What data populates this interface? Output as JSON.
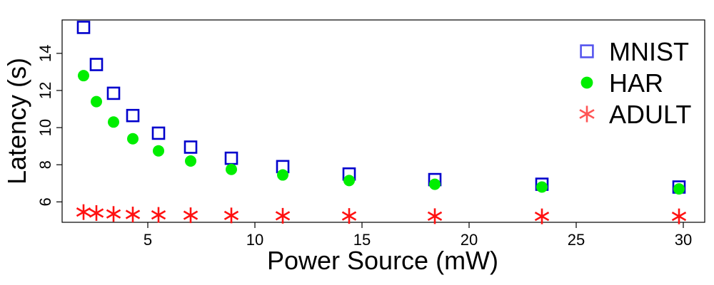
{
  "chart_data": {
    "type": "scatter",
    "title": "",
    "xlabel": "Power Source (mW)",
    "ylabel": "Latency (s)",
    "xlim": [
      1.0,
      31.0
    ],
    "ylim": [
      4.9,
      15.8
    ],
    "xticks": [
      5,
      10,
      15,
      20,
      25,
      30
    ],
    "yticks": [
      6,
      8,
      10,
      12,
      14
    ],
    "x_tick_labels": [
      "5",
      "10",
      "15",
      "20",
      "25",
      "30"
    ],
    "y_tick_labels": [
      "6",
      "8",
      "10",
      "12",
      "14"
    ],
    "grid": false,
    "legend_position": "top-right",
    "series": [
      {
        "name": "MNIST",
        "marker": "open-square",
        "color": "#0000cc",
        "x": [
          2.0,
          2.6,
          3.4,
          4.3,
          5.5,
          7.0,
          8.9,
          11.3,
          14.4,
          18.4,
          23.4,
          29.8
        ],
        "y": [
          15.4,
          13.4,
          11.85,
          10.65,
          9.7,
          8.95,
          8.35,
          7.9,
          7.5,
          7.2,
          6.95,
          6.8
        ]
      },
      {
        "name": "HAR",
        "marker": "filled-circle",
        "color": "#00ee00",
        "x": [
          2.0,
          2.6,
          3.4,
          4.3,
          5.5,
          7.0,
          8.9,
          11.3,
          14.4,
          18.4,
          23.4,
          29.8
        ],
        "y": [
          12.8,
          11.4,
          10.3,
          9.4,
          8.75,
          8.2,
          7.75,
          7.45,
          7.15,
          6.95,
          6.8,
          6.7
        ]
      },
      {
        "name": "ADULT",
        "marker": "asterisk",
        "color": "#ff1111",
        "x": [
          2.0,
          2.6,
          3.4,
          4.3,
          5.5,
          7.0,
          8.9,
          11.3,
          14.4,
          18.4,
          23.4,
          29.8
        ],
        "y": [
          5.45,
          5.4,
          5.35,
          5.32,
          5.3,
          5.28,
          5.27,
          5.25,
          5.24,
          5.23,
          5.22,
          5.22
        ]
      }
    ]
  }
}
